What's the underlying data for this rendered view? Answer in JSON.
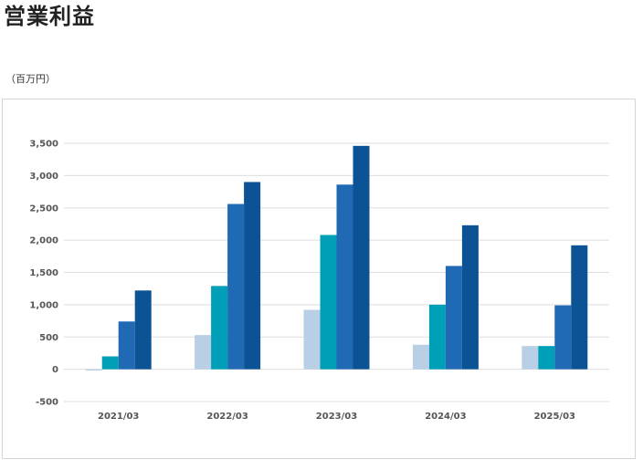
{
  "page": {
    "title": "営業利益",
    "unit": "（百万円）"
  },
  "chart_data": {
    "type": "bar",
    "title": "営業利益",
    "ylabel": "（百万円）",
    "categories": [
      "2021/03",
      "2022/03",
      "2023/03",
      "2024/03",
      "2025/03"
    ],
    "series": [
      {
        "color": "#b9cfe6",
        "values": [
          -20,
          530,
          920,
          380,
          360
        ]
      },
      {
        "color": "#009fb8",
        "values": [
          200,
          1290,
          2080,
          1000,
          360
        ]
      },
      {
        "color": "#1f69b5",
        "values": [
          740,
          2560,
          2860,
          1600,
          990
        ]
      },
      {
        "color": "#0b5394",
        "values": [
          1220,
          2900,
          3460,
          2230,
          1920
        ]
      }
    ],
    "yticks": [
      -500,
      0,
      500,
      1000,
      1500,
      2000,
      2500,
      3000,
      3500
    ],
    "ytick_labels": [
      "-500",
      "0",
      "500",
      "1,000",
      "1,500",
      "2,000",
      "2,500",
      "3,000",
      "3,500"
    ],
    "ylim": [
      -500,
      3500
    ],
    "grid": true,
    "legend": "none"
  }
}
